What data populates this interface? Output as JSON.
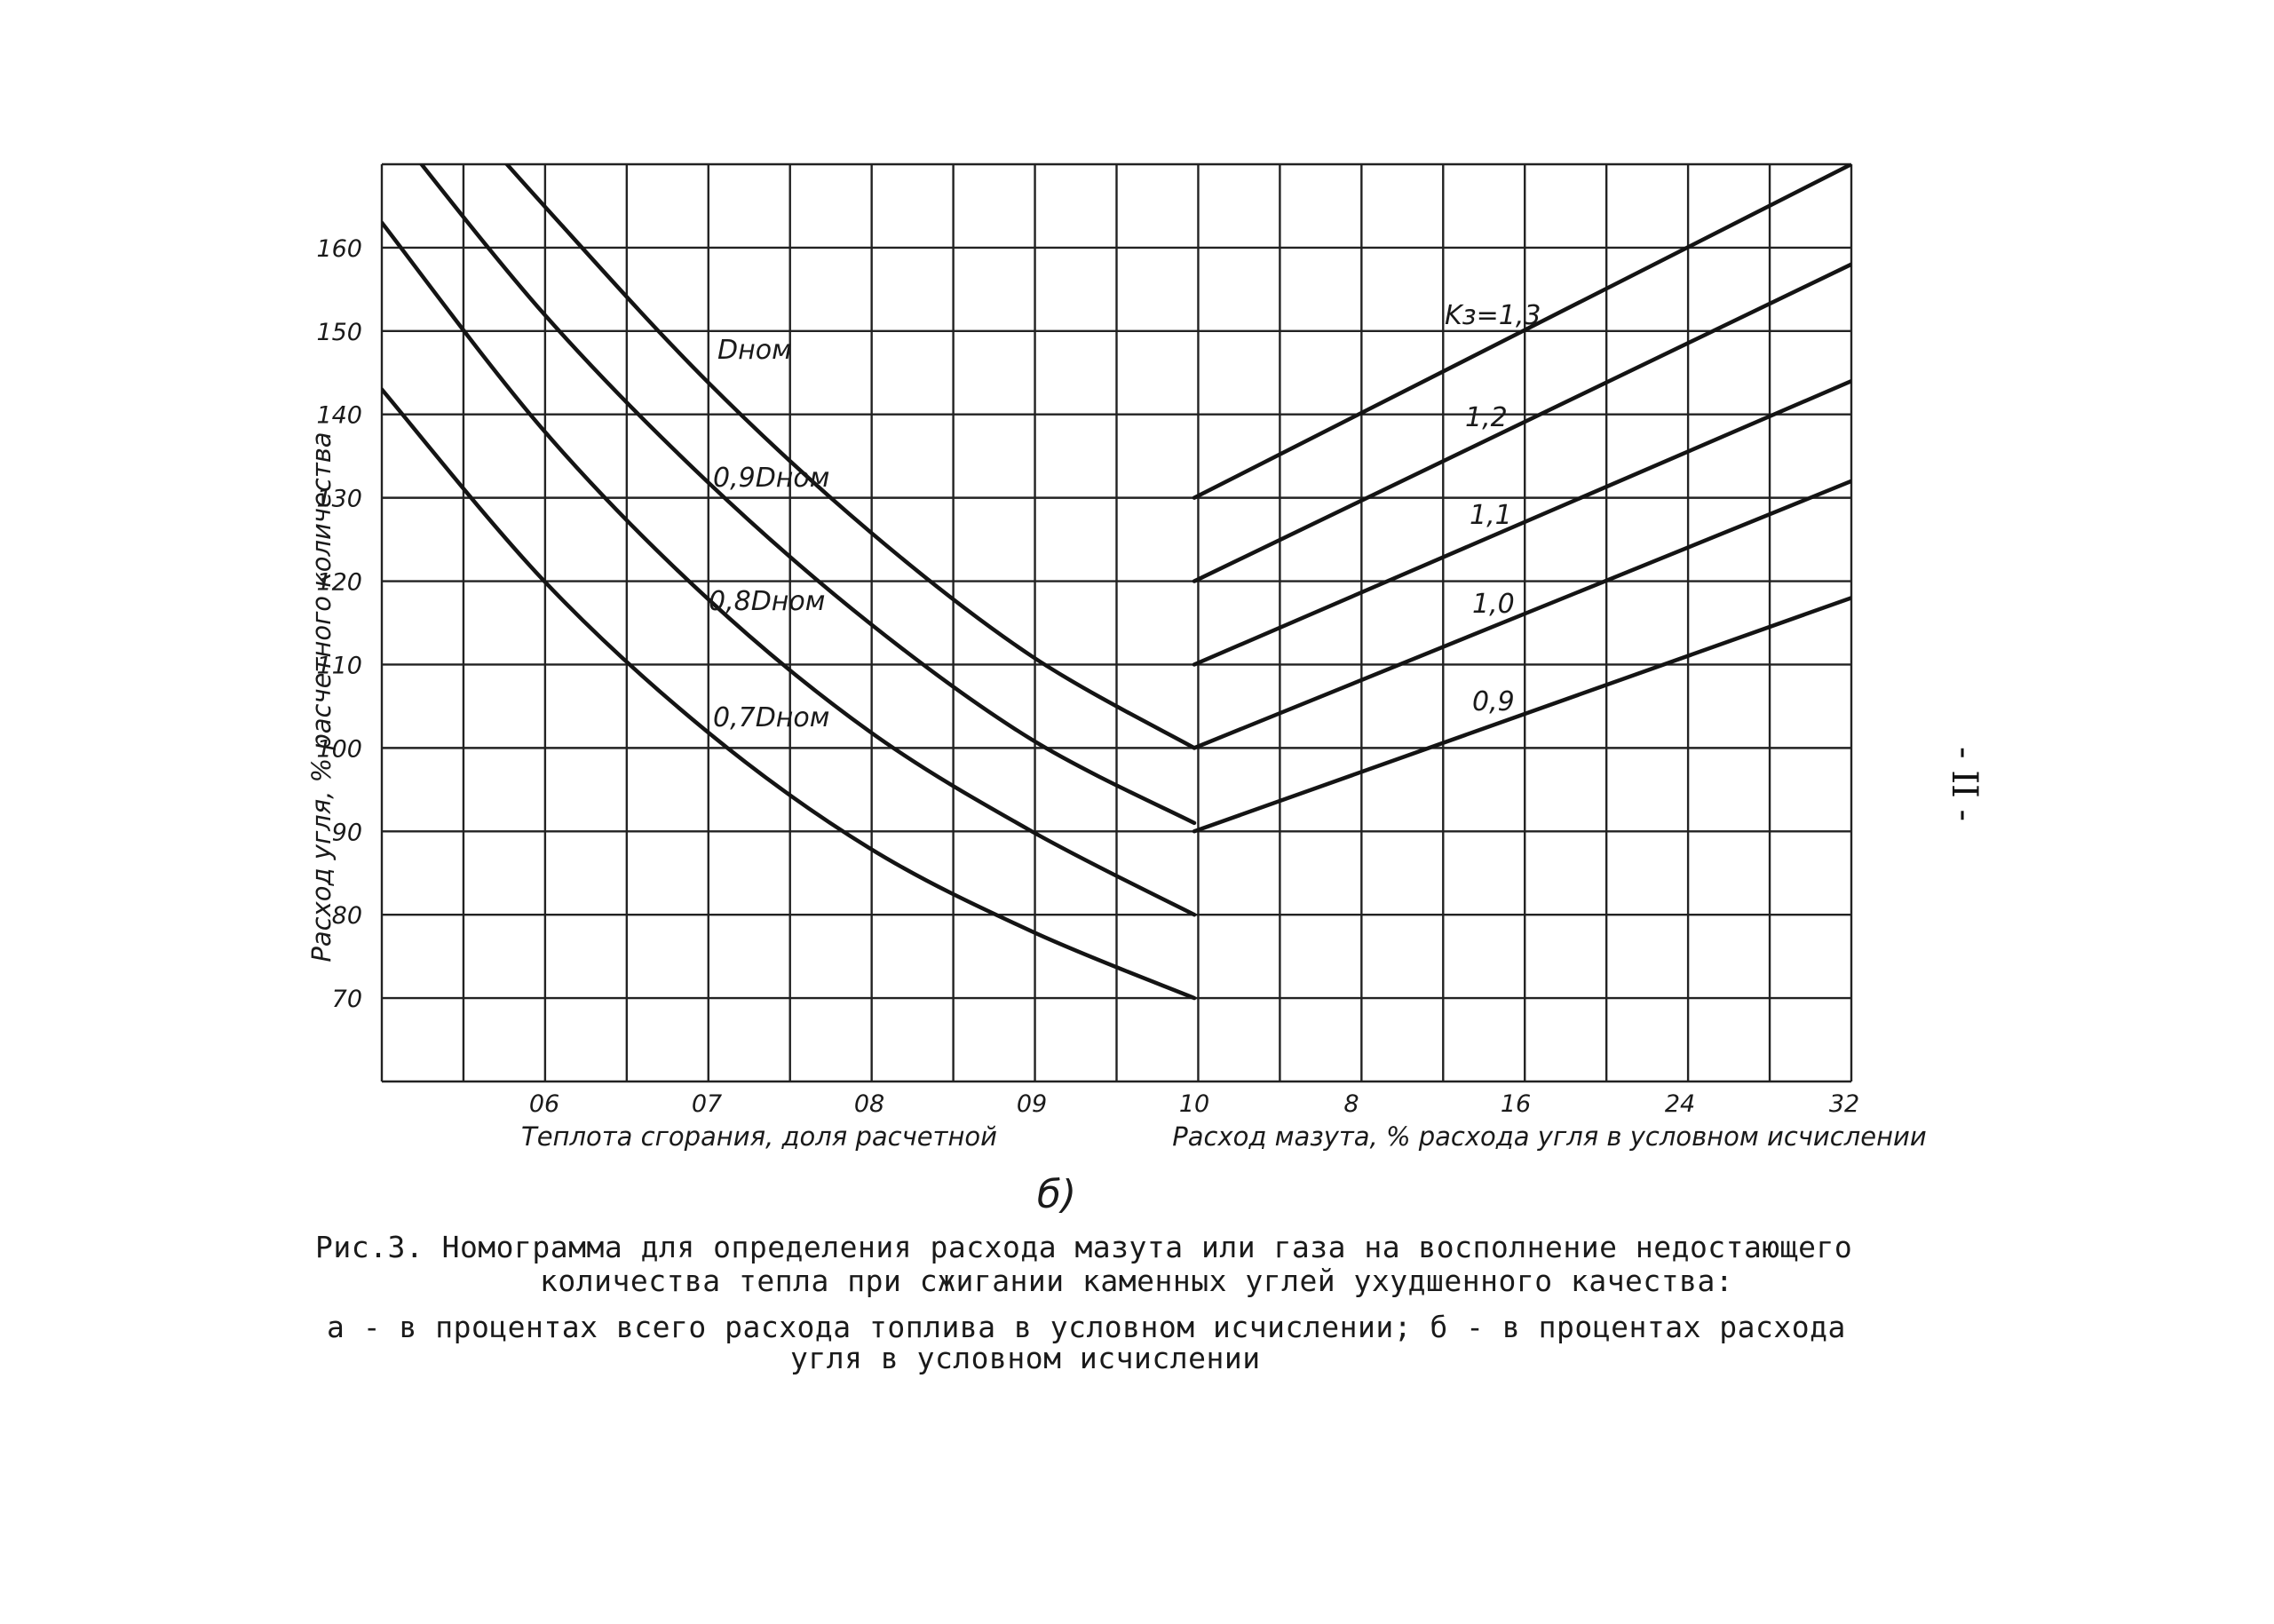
{
  "chart_data": {
    "type": "line",
    "ylabel": "Расход угля, % расчетного количества",
    "y_ticks": [
      "160",
      "150",
      "140",
      "130",
      "120",
      "110",
      "100",
      "90",
      "80",
      "70"
    ],
    "ylim": [
      60,
      170
    ],
    "grid": true,
    "left_panel": {
      "xlabel": "Теплота сгорания, доля расчетной",
      "x_ticks": [
        "0.6",
        "0.7",
        "0.8",
        "0.9",
        "1.0"
      ],
      "xlim": [
        0.5,
        1.0
      ],
      "series": [
        {
          "name": "Dном",
          "points": [
            [
              0.5,
              187
            ],
            [
              0.6,
              165
            ],
            [
              0.7,
              144
            ],
            [
              0.8,
              126
            ],
            [
              0.9,
              111
            ],
            [
              1.0,
              100
            ]
          ]
        },
        {
          "name": "0,9Dном",
          "points": [
            [
              0.5,
              176
            ],
            [
              0.6,
              152
            ],
            [
              0.7,
              132
            ],
            [
              0.8,
              115
            ],
            [
              0.9,
              101
            ],
            [
              1.0,
              91
            ]
          ]
        },
        {
          "name": "0,8Dном",
          "points": [
            [
              0.5,
              163
            ],
            [
              0.6,
              138
            ],
            [
              0.7,
              118
            ],
            [
              0.8,
              102
            ],
            [
              0.9,
              90
            ],
            [
              1.0,
              80
            ]
          ]
        },
        {
          "name": "0,7Dном",
          "points": [
            [
              0.5,
              143
            ],
            [
              0.6,
              120
            ],
            [
              0.7,
              102
            ],
            [
              0.8,
              88
            ],
            [
              0.9,
              78
            ],
            [
              1.0,
              70
            ]
          ]
        }
      ]
    },
    "right_panel": {
      "xlabel": "Расход мазута, % расхода угля в условном исчислении",
      "x_ticks": [
        "8",
        "16",
        "24",
        "32"
      ],
      "xlim": [
        0,
        32
      ],
      "series": [
        {
          "name": "Kз=1,3",
          "points": [
            [
              0,
              130
            ],
            [
              32,
              170
            ]
          ]
        },
        {
          "name": "1,2",
          "points": [
            [
              0,
              120
            ],
            [
              32,
              158
            ]
          ]
        },
        {
          "name": "1,1",
          "points": [
            [
              0,
              110
            ],
            [
              32,
              144
            ]
          ]
        },
        {
          "name": "1,0",
          "points": [
            [
              0,
              100
            ],
            [
              32,
              132
            ]
          ]
        },
        {
          "name": "0,9",
          "points": [
            [
              0,
              90
            ],
            [
              32,
              118
            ]
          ]
        }
      ]
    },
    "left_x_tick_labels": [
      "06",
      "07",
      "08",
      "09",
      "10"
    ],
    "right_x_tick_labels": [
      "8",
      "16",
      "24",
      "32"
    ],
    "left_xlabel_text": "Теплота сгорания, доля расчетной",
    "right_xlabel_text": "Расход мазута, % расхода угля в условном исчислении",
    "curve_labels": {
      "d_nom": "Dном",
      "d09": "0,9Dном",
      "d08": "0,8Dном",
      "d07": "0,7Dном",
      "k13": "Kз=1,3",
      "k12": "1,2",
      "k11": "1,1",
      "k10": "1,0",
      "k09": "0,9"
    },
    "panel_letter": "б)"
  },
  "caption": {
    "line1": "Рис.3. Номограмма для определения расхода мазута или газа на восполнение недостающего",
    "line2": "количества тепла при сжигании каменных углей ухудшенного качества:",
    "line3": "а - в процентах всего расхода топлива в условном исчислении; б - в процентах расхода",
    "line4": "угля в условном исчислении"
  },
  "page_number": "- II -"
}
